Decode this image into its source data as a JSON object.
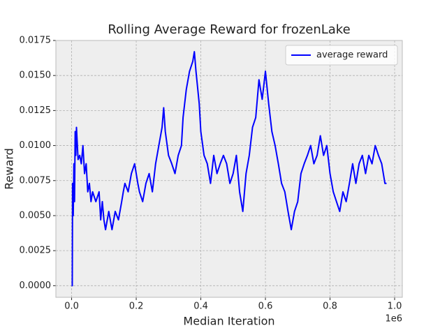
{
  "chart_data": {
    "type": "line",
    "title": "Rolling Average Reward for frozenLake",
    "x_label": "Median Iteration",
    "y_label": "Reward",
    "x_offset_label": "1e6",
    "xlim": [
      -48750,
      1023750
    ],
    "ylim": [
      -0.00083,
      0.0175
    ],
    "xticks": [
      {
        "value": 0,
        "label": "0.0"
      },
      {
        "value": 200000,
        "label": "0.2"
      },
      {
        "value": 400000,
        "label": "0.4"
      },
      {
        "value": 600000,
        "label": "0.6"
      },
      {
        "value": 800000,
        "label": "0.8"
      },
      {
        "value": 1000000,
        "label": "1.0"
      }
    ],
    "yticks": [
      {
        "value": 0,
        "label": "0.0000"
      },
      {
        "value": 0.0025,
        "label": "0.0025"
      },
      {
        "value": 0.005,
        "label": "0.0050"
      },
      {
        "value": 0.0075,
        "label": "0.0075"
      },
      {
        "value": 0.01,
        "label": "0.0100"
      },
      {
        "value": 0.0125,
        "label": "0.0125"
      },
      {
        "value": 0.015,
        "label": "0.0150"
      },
      {
        "value": 0.0175,
        "label": "0.0175"
      }
    ],
    "grid": true,
    "legend": "upper right",
    "x": [
      0,
      2000,
      3000,
      5000,
      7000,
      9000,
      11000,
      13000,
      15000,
      20000,
      25000,
      30000,
      35000,
      40000,
      45000,
      50000,
      55000,
      60000,
      65000,
      75000,
      85000,
      90000,
      95000,
      100000,
      105000,
      115000,
      125000,
      135000,
      145000,
      155000,
      160000,
      165000,
      175000,
      185000,
      195000,
      205000,
      210000,
      220000,
      230000,
      240000,
      250000,
      260000,
      270000,
      280000,
      285000,
      290000,
      300000,
      310000,
      320000,
      330000,
      340000,
      345000,
      355000,
      365000,
      375000,
      380000,
      385000,
      395000,
      400000,
      410000,
      420000,
      430000,
      440000,
      450000,
      460000,
      470000,
      480000,
      490000,
      500000,
      510000,
      520000,
      530000,
      540000,
      550000,
      560000,
      570000,
      580000,
      590000,
      600000,
      610000,
      620000,
      630000,
      640000,
      650000,
      660000,
      670000,
      680000,
      690000,
      700000,
      710000,
      720000,
      730000,
      740000,
      750000,
      760000,
      770000,
      780000,
      790000,
      800000,
      810000,
      820000,
      830000,
      840000,
      850000,
      860000,
      870000,
      880000,
      890000,
      900000,
      910000,
      920000,
      930000,
      940000,
      950000,
      960000,
      970000,
      975000
    ],
    "series": [
      {
        "name": "average reward",
        "color": "#0000ff",
        "values": [
          0,
          0,
          0.0073,
          0.005,
          0.0087,
          0.006,
          0.011,
          0.0093,
          0.0113,
          0.009,
          0.0093,
          0.0087,
          0.01,
          0.008,
          0.0087,
          0.0067,
          0.0073,
          0.006,
          0.0067,
          0.006,
          0.0067,
          0.0047,
          0.006,
          0.0047,
          0.004,
          0.0053,
          0.004,
          0.0053,
          0.0047,
          0.006,
          0.0067,
          0.0073,
          0.0067,
          0.008,
          0.0087,
          0.0073,
          0.0067,
          0.006,
          0.0073,
          0.008,
          0.0067,
          0.0087,
          0.01,
          0.0113,
          0.0127,
          0.011,
          0.0093,
          0.0087,
          0.008,
          0.0093,
          0.01,
          0.012,
          0.014,
          0.0153,
          0.016,
          0.0167,
          0.0153,
          0.013,
          0.011,
          0.0093,
          0.0087,
          0.0073,
          0.0093,
          0.008,
          0.0087,
          0.0093,
          0.0087,
          0.0073,
          0.008,
          0.0093,
          0.0067,
          0.0053,
          0.008,
          0.0093,
          0.0113,
          0.012,
          0.0147,
          0.0133,
          0.0153,
          0.013,
          0.011,
          0.01,
          0.0087,
          0.0073,
          0.0067,
          0.0053,
          0.004,
          0.0053,
          0.006,
          0.008,
          0.0087,
          0.0093,
          0.01,
          0.0087,
          0.0093,
          0.0107,
          0.0093,
          0.01,
          0.008,
          0.0067,
          0.006,
          0.0053,
          0.0067,
          0.006,
          0.0073,
          0.0087,
          0.0073,
          0.0087,
          0.0093,
          0.008,
          0.0093,
          0.0087,
          0.01,
          0.0093,
          0.0087,
          0.0073,
          0.0073
        ]
      }
    ]
  }
}
